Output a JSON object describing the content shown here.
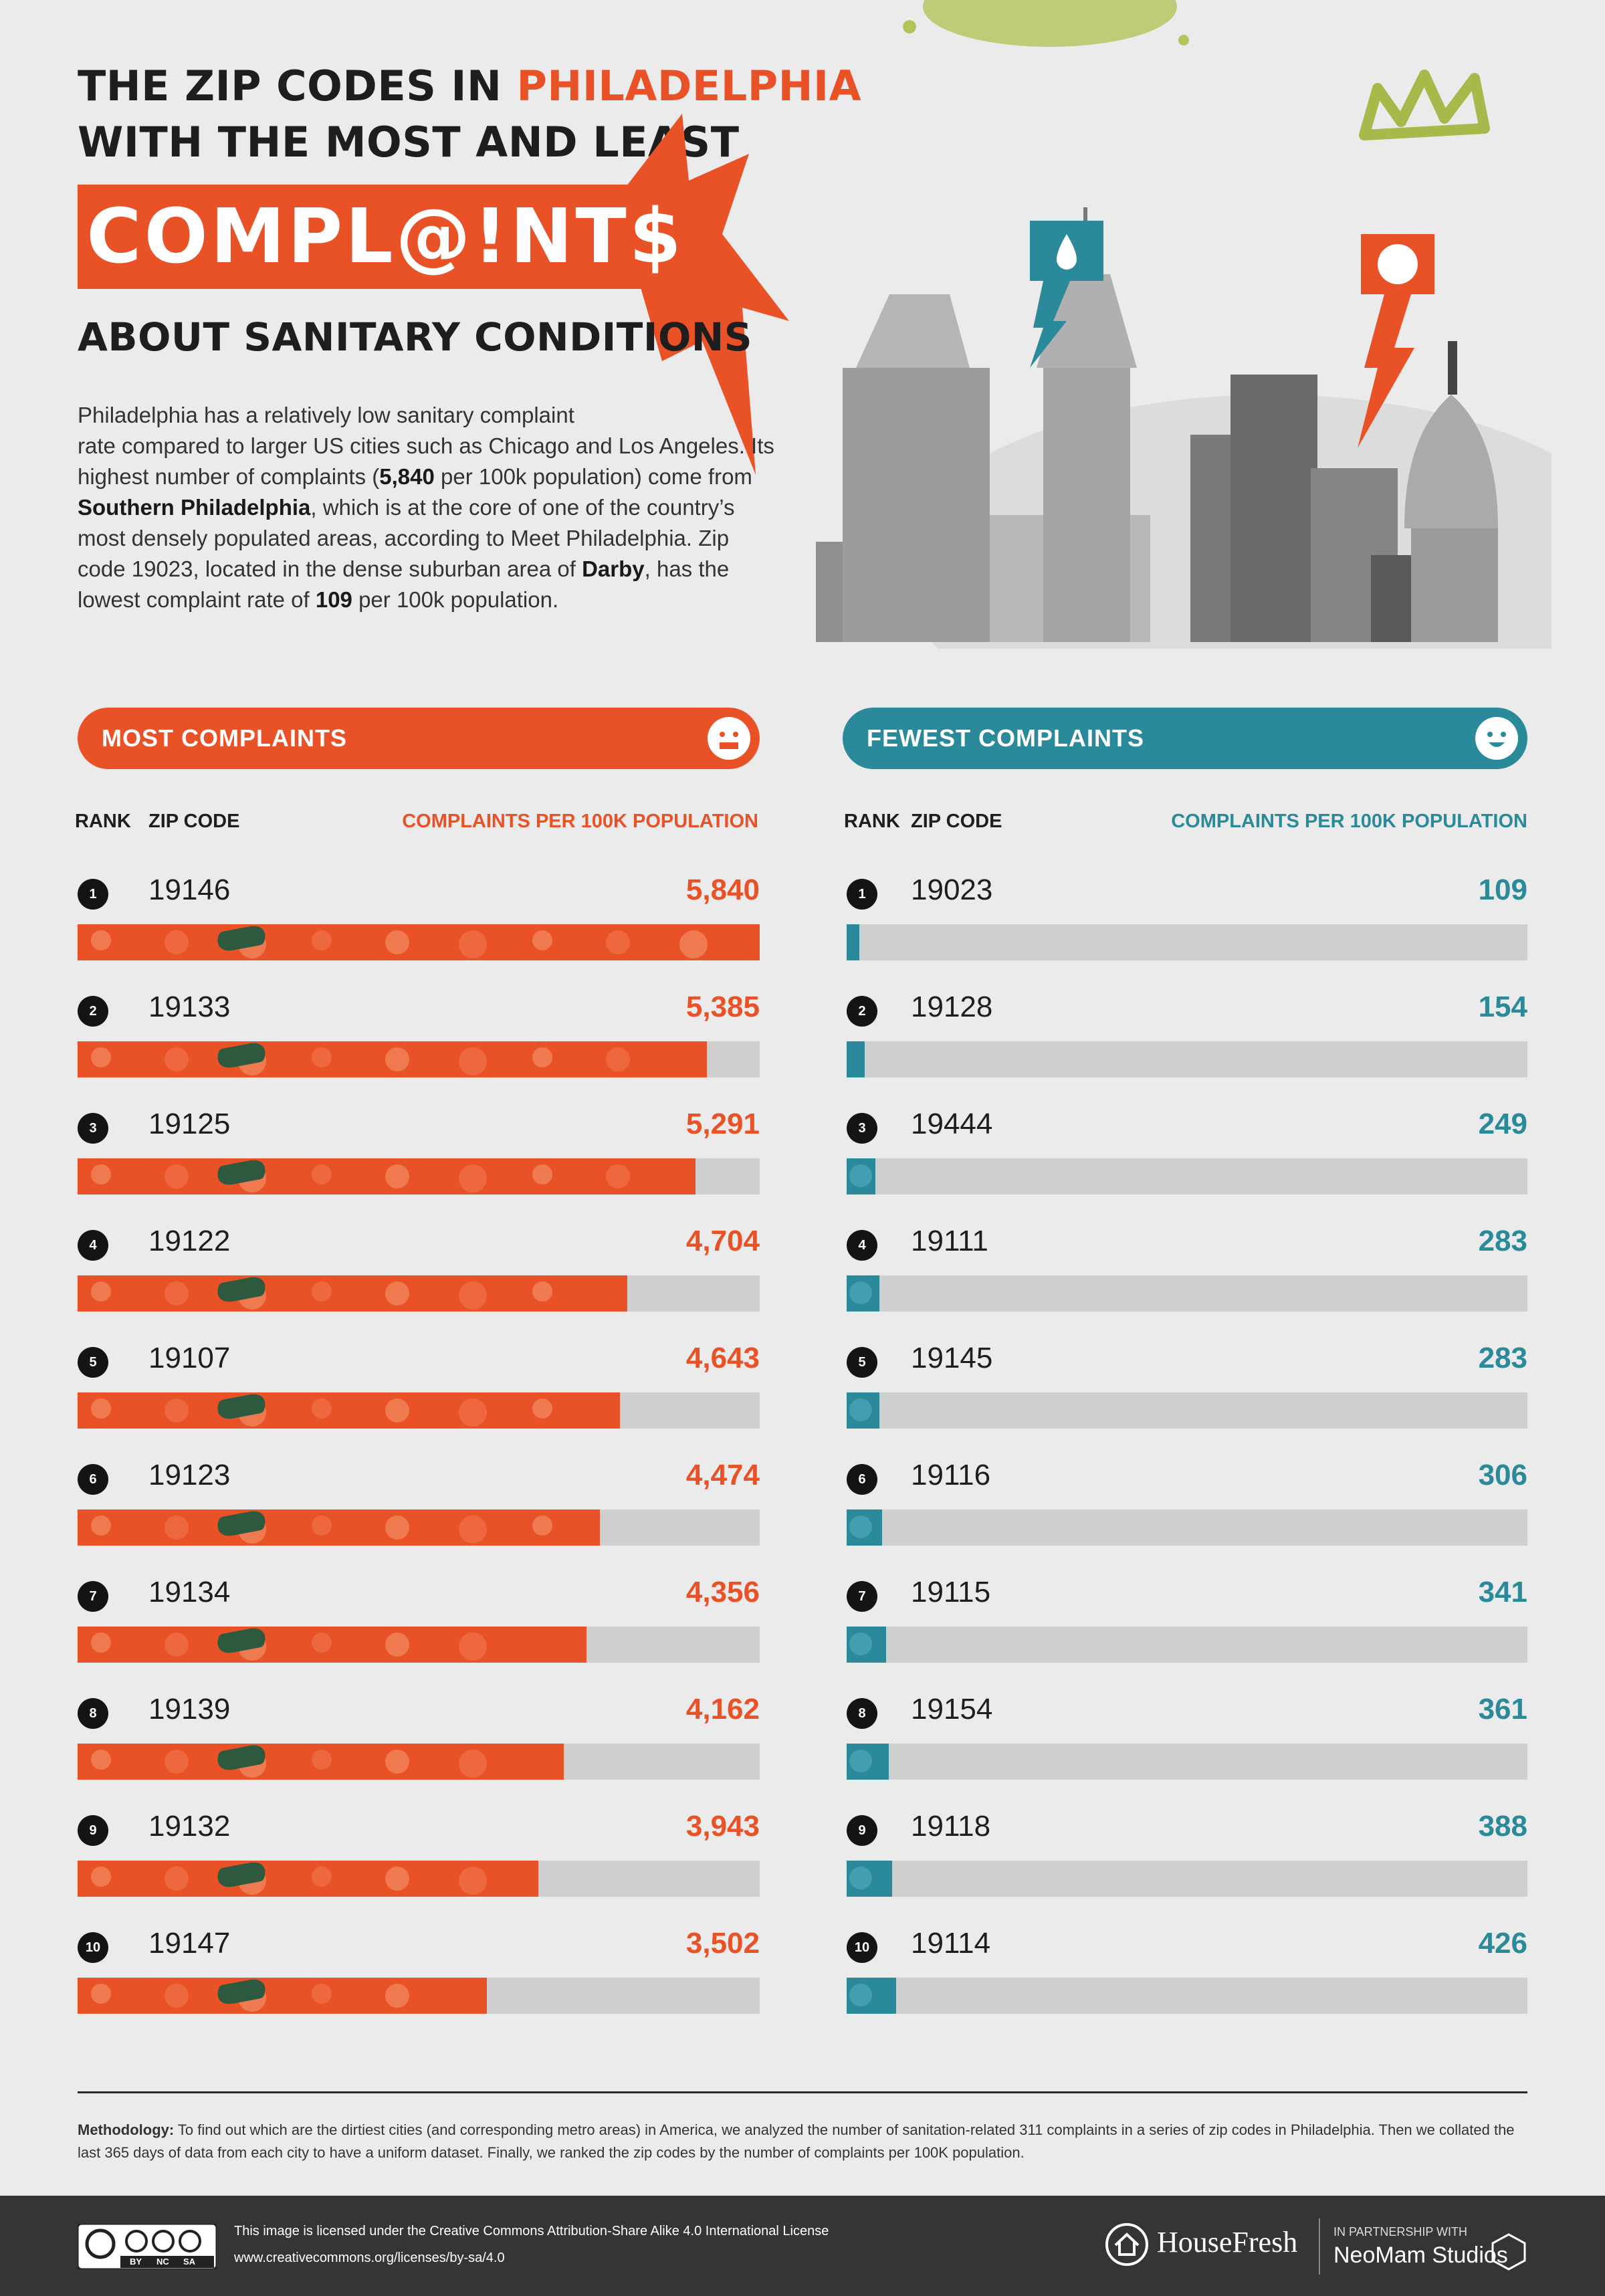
{
  "header": {
    "title_line1_pre": "THE ZIP CODES IN ",
    "title_line1_accent": "PHILADELPHIA",
    "title_line2": "WITH THE MOST AND LEAST",
    "banner": "COMPL@!NT$",
    "title_line3": "ABOUT SANITARY CONDITIONS"
  },
  "intro": {
    "p1": "Philadelphia has a relatively low sanitary complaint",
    "p2": "rate compared to larger US cities such as Chicago and Los Angeles. Its highest number of complaints (",
    "b1": "5,840",
    "p3": " per 100k population) come from ",
    "b2": "Southern Philadelphia",
    "p4": ", which is at the core of one of the country’s most densely populated areas, according to Meet Philadelphia. Zip code 19023, located in the dense suburban area of ",
    "b3": "Darby",
    "p5": ", has the lowest complaint rate of ",
    "b4": "109",
    "p6": " per 100k population."
  },
  "colors": {
    "orange": "#e95227",
    "teal": "#2a8a9a",
    "track": "#cfcfcf",
    "lime": "#a8b84a"
  },
  "chart_data": [
    {
      "type": "bar",
      "title": "MOST COMPLAINTS",
      "col_rank": "RANK",
      "col_zip": "ZIP CODE",
      "col_value": "COMPLAINTS PER 100K POPULATION",
      "xlim": [
        0,
        5840
      ],
      "rows": [
        {
          "rank": "1",
          "zip": "19146",
          "value": 5840,
          "label": "5,840"
        },
        {
          "rank": "2",
          "zip": "19133",
          "value": 5385,
          "label": "5,385"
        },
        {
          "rank": "3",
          "zip": "19125",
          "value": 5291,
          "label": "5,291"
        },
        {
          "rank": "4",
          "zip": "19122",
          "value": 4704,
          "label": "4,704"
        },
        {
          "rank": "5",
          "zip": "19107",
          "value": 4643,
          "label": "4,643"
        },
        {
          "rank": "6",
          "zip": "19123",
          "value": 4474,
          "label": "4,474"
        },
        {
          "rank": "7",
          "zip": "19134",
          "value": 4356,
          "label": "4,356"
        },
        {
          "rank": "8",
          "zip": "19139",
          "value": 4162,
          "label": "4,162"
        },
        {
          "rank": "9",
          "zip": "19132",
          "value": 3943,
          "label": "3,943"
        },
        {
          "rank": "10",
          "zip": "19147",
          "value": 3502,
          "label": "3,502"
        }
      ]
    },
    {
      "type": "bar",
      "title": "FEWEST COMPLAINTS",
      "col_rank": "RANK",
      "col_zip": "ZIP CODE",
      "col_value": "COMPLAINTS PER 100K POPULATION",
      "xlim": [
        0,
        5840
      ],
      "rows": [
        {
          "rank": "1",
          "zip": "19023",
          "value": 109,
          "label": "109"
        },
        {
          "rank": "2",
          "zip": "19128",
          "value": 154,
          "label": "154"
        },
        {
          "rank": "3",
          "zip": "19444",
          "value": 249,
          "label": "249"
        },
        {
          "rank": "4",
          "zip": "19111",
          "value": 283,
          "label": "283"
        },
        {
          "rank": "5",
          "zip": "19145",
          "value": 283,
          "label": "283"
        },
        {
          "rank": "6",
          "zip": "19116",
          "value": 306,
          "label": "306"
        },
        {
          "rank": "7",
          "zip": "19115",
          "value": 341,
          "label": "341"
        },
        {
          "rank": "8",
          "zip": "19154",
          "value": 361,
          "label": "361"
        },
        {
          "rank": "9",
          "zip": "19118",
          "value": 388,
          "label": "388"
        },
        {
          "rank": "10",
          "zip": "19114",
          "value": 426,
          "label": "426"
        }
      ]
    }
  ],
  "methodology": {
    "label": "Methodology:",
    "text": " To find out which are the dirtiest cities (and corresponding metro areas) in America, we analyzed the number of sanitation-related 311 complaints in a series of zip codes in Philadelphia. Then we collated the last 365 days of data from each city to have a uniform dataset. Finally, we ranked the zip codes by the number of complaints per 100K population."
  },
  "footer": {
    "license_line1": "This image is licensed under the Creative Commons Attribution-Share Alike 4.0  International License",
    "license_line2": "www.creativecommons.org/licenses/by-sa/4.0",
    "cc_by": "BY",
    "cc_nc": "NC",
    "cc_sa": "SA",
    "brand1": "HouseFresh",
    "partner_label": "IN PARTNERSHIP WITH",
    "brand2": "NeoMam Studios"
  }
}
